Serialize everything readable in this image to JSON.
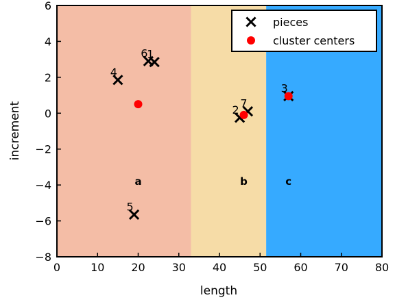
{
  "chart_data": {
    "type": "scatter",
    "xlabel": "length",
    "ylabel": "increment",
    "xlim": [
      0,
      80
    ],
    "ylim": [
      -8,
      6
    ],
    "xticks": [
      0,
      10,
      20,
      30,
      40,
      50,
      60,
      70,
      80
    ],
    "yticks": [
      -8,
      -6,
      -4,
      -2,
      0,
      2,
      4,
      6
    ],
    "grid": false,
    "legend_position": "top-right",
    "regions": [
      {
        "label": "a",
        "x_range": [
          0,
          33
        ],
        "color": "#f4bda6",
        "label_position": [
          20,
          -3.8
        ]
      },
      {
        "label": "b",
        "x_range": [
          33,
          51.5
        ],
        "color": "#f6dca7",
        "label_position": [
          46,
          -3.8
        ]
      },
      {
        "label": "c",
        "x_range": [
          51.5,
          80
        ],
        "color": "#36aaff",
        "label_position": [
          57,
          -3.8
        ]
      }
    ],
    "series": [
      {
        "name": "pieces",
        "marker": "x",
        "color": "#000000",
        "points": [
          {
            "label": "1",
            "x": 24,
            "y": 2.85
          },
          {
            "label": "2",
            "x": 45,
            "y": -0.25
          },
          {
            "label": "3",
            "x": 57,
            "y": 0.95
          },
          {
            "label": "4",
            "x": 15,
            "y": 1.85
          },
          {
            "label": "5",
            "x": 19,
            "y": -5.65
          },
          {
            "label": "6",
            "x": 22.5,
            "y": 2.9
          },
          {
            "label": "7",
            "x": 47,
            "y": 0.1
          }
        ]
      },
      {
        "name": "cluster centers",
        "marker": "o",
        "color": "#ff0000",
        "points": [
          {
            "x": 20,
            "y": 0.5
          },
          {
            "x": 46,
            "y": -0.1
          },
          {
            "x": 57,
            "y": 0.95
          }
        ]
      }
    ]
  }
}
